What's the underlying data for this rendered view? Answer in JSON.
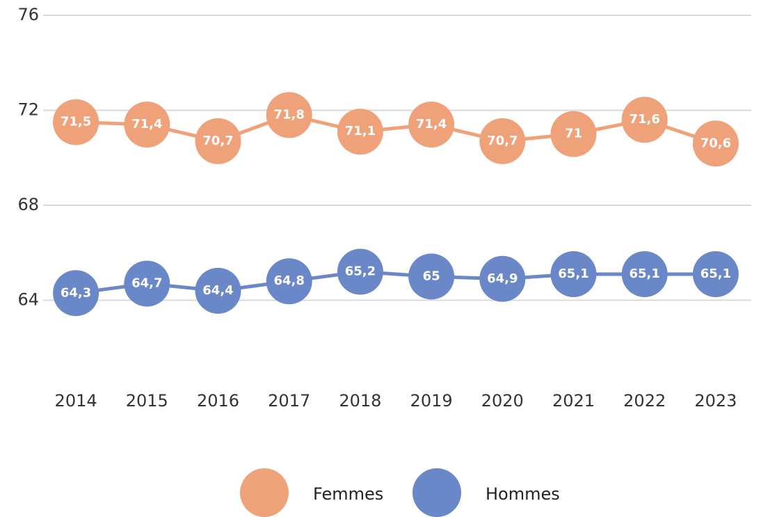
{
  "chart_data": {
    "type": "line",
    "categories": [
      "2014",
      "2015",
      "2016",
      "2017",
      "2018",
      "2019",
      "2020",
      "2021",
      "2022",
      "2023"
    ],
    "series": [
      {
        "name": "Femmes",
        "color": "#efa27a",
        "values": [
          71.5,
          71.4,
          70.7,
          71.8,
          71.1,
          71.4,
          70.7,
          71,
          71.6,
          70.6
        ],
        "value_labels": [
          "71,5",
          "71,4",
          "70,7",
          "71,8",
          "71,1",
          "71,4",
          "70,7",
          "71",
          "71,6",
          "70,6"
        ]
      },
      {
        "name": "Hommes",
        "color": "#6a87c8",
        "values": [
          64.3,
          64.7,
          64.4,
          64.8,
          65.2,
          65,
          64.9,
          65.1,
          65.1,
          65.1
        ],
        "value_labels": [
          "64,3",
          "64,7",
          "64,4",
          "64,8",
          "65,2",
          "65",
          "64,9",
          "65,1",
          "65,1",
          "65,1"
        ]
      }
    ],
    "ylim": [
      60,
      76
    ],
    "yticks": [
      64,
      68,
      72,
      76
    ],
    "grid": true,
    "legend": "bottom"
  }
}
